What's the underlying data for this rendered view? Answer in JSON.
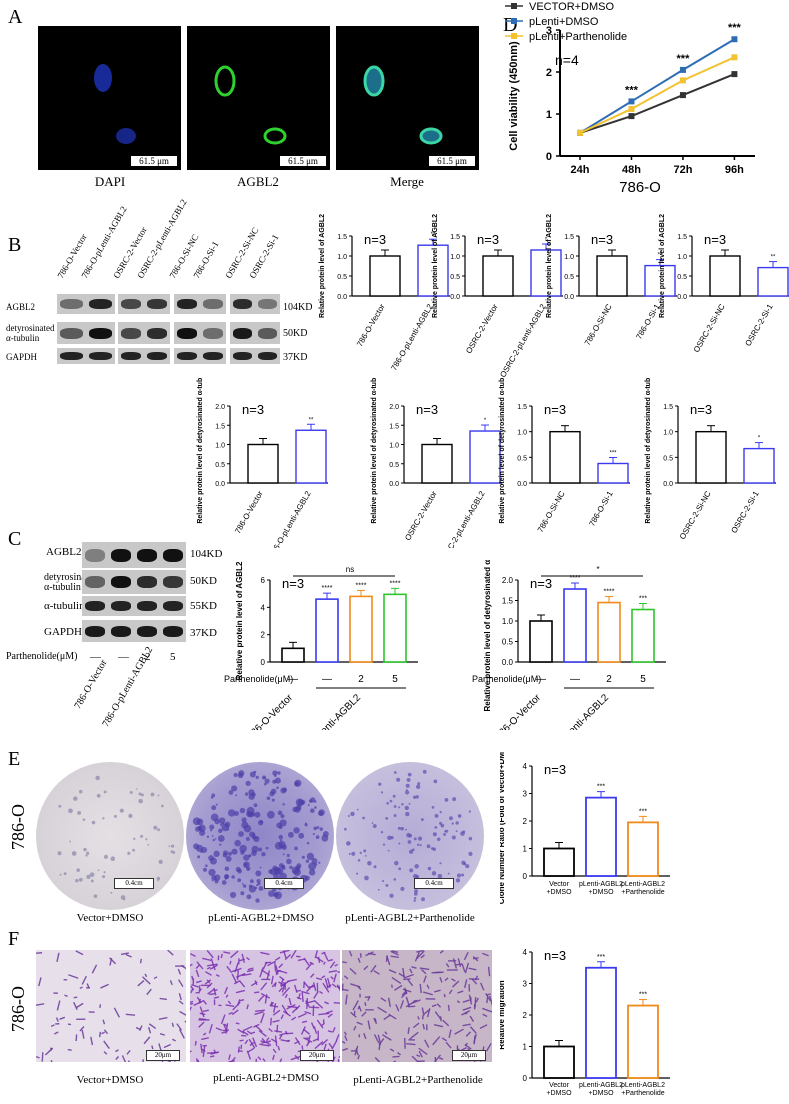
{
  "panels": {
    "A": "A",
    "B": "B",
    "C": "C",
    "D": "D",
    "E": "E",
    "F": "F"
  },
  "panelA": {
    "captions": [
      "DAPI",
      "AGBL2",
      "Merge"
    ],
    "scale": "61.5 μm"
  },
  "panelD": {
    "n": "n=4",
    "title": "786-O",
    "ylabel": "Cell viability (450nm)",
    "stars": [
      "***",
      "***",
      "***"
    ]
  },
  "panelB": {
    "lanes": [
      "786-O-Vector",
      "786-O-pLenti-AGBL2",
      "OSRC-2-Vector",
      "OSRC-2-pLenti-AGBL2",
      "786-O-Si-NC",
      "786-O-Si-1",
      "OSRC-2-Si-NC",
      "OSRC-2-Si-1"
    ],
    "rows": [
      "AGBL2",
      "detyrosinated α-tubulin",
      "GAPDH"
    ],
    "kd": [
      "104KD",
      "50KD",
      "37KD"
    ],
    "n": "n=3",
    "ylabel_agbl2": "Relative protein level of AGBL2",
    "ylabel_tub": "Relative protein level of detyrosinated α-tubulin"
  },
  "panelC": {
    "rows": [
      "AGBL2",
      "detyrosinated α-tubulin",
      "α-tubulin",
      "GAPDH"
    ],
    "kd": [
      "104KD",
      "50KD",
      "55KD",
      "37KD"
    ],
    "treat_label": "Parthenolide(μM)",
    "treat_vals": [
      "—",
      "—",
      "2",
      "5"
    ],
    "lanes": [
      "786-O-Vector",
      "786-O-pLenti-AGBL2"
    ],
    "n": "n=3",
    "ns": "ns",
    "star": "*",
    "ylabel1": "Relative protein level of AGBL2",
    "ylabel2": "Relative protein level of detyrosinated α-tubulin"
  },
  "panelE": {
    "side": "786-O",
    "captions": [
      "Vector+DMSO",
      "pLenti-AGBL2+DMSO",
      "pLenti-AGBL2+Parthenolide"
    ],
    "scale": "0.4cm",
    "n": "n=3",
    "ylabel": "Clone Number Ratio (Fold of Vector+DMSO)",
    "xlabels": [
      "Vector +DMSO",
      "pLenti-AGBL2 +DMSO",
      "pLenti-AGBL2 +Parthenolide"
    ],
    "stars": [
      "***",
      "***"
    ]
  },
  "panelF": {
    "side": "786-O",
    "captions": [
      "Vector+DMSO",
      "pLenti-AGBL2+DMSO",
      "pLenti-AGBL2+Parthenolide"
    ],
    "scale": "20μm",
    "n": "n=3",
    "ylabel": "Relative migration",
    "xlabels": [
      "Vector +DMSO",
      "pLenti-AGBL2 +DMSO",
      "pLenti-AGBL2 +Parthenolide"
    ],
    "stars": [
      "***",
      "***"
    ]
  },
  "chart_data": [
    {
      "id": "D",
      "type": "line",
      "title": "786-O",
      "ylabel": "Cell viability (450nm)",
      "categories": [
        "24h",
        "48h",
        "72h",
        "96h"
      ],
      "ylim": [
        0,
        3
      ],
      "yticks": [
        0,
        1,
        2,
        3
      ],
      "legend": "top",
      "series": [
        {
          "name": "VECTOR+DMSO",
          "color": "#333333",
          "values": [
            0.55,
            0.95,
            1.45,
            1.95
          ]
        },
        {
          "name": "pLenti+DMSO",
          "color": "#2e6db4",
          "values": [
            0.55,
            1.3,
            2.05,
            2.78
          ]
        },
        {
          "name": "pLenti+Parthenolide",
          "color": "#f2c230",
          "values": [
            0.55,
            1.12,
            1.8,
            2.35
          ]
        }
      ]
    },
    {
      "id": "B1",
      "type": "bar",
      "categories": [
        "786-O-Vector",
        "786-O-pLenti-AGBL2"
      ],
      "values": [
        1.0,
        1.27
      ],
      "ylim": [
        0,
        1.5
      ],
      "yticks": [
        0,
        0.5,
        1.0,
        1.5
      ],
      "stars": [
        "",
        "**"
      ]
    },
    {
      "id": "B2",
      "type": "bar",
      "categories": [
        "OSRC-2-Vector",
        "OSRC-2-pLenti-AGBL2"
      ],
      "values": [
        1.0,
        1.15
      ],
      "ylim": [
        0,
        1.5
      ],
      "yticks": [
        0,
        0.5,
        1.0,
        1.5
      ],
      "stars": [
        "",
        "*"
      ]
    },
    {
      "id": "B3",
      "type": "bar",
      "categories": [
        "786-O-Si-NC",
        "786-O-Si-1"
      ],
      "values": [
        1.0,
        0.76
      ],
      "ylim": [
        0,
        1.5
      ],
      "yticks": [
        0,
        0.5,
        1.0,
        1.5
      ],
      "stars": [
        "",
        "**"
      ]
    },
    {
      "id": "B4",
      "type": "bar",
      "categories": [
        "OSRC-2-Si-NC",
        "OSRC-2-Si-1"
      ],
      "values": [
        1.0,
        0.71
      ],
      "ylim": [
        0,
        1.5
      ],
      "yticks": [
        0,
        0.5,
        1.0,
        1.5
      ],
      "stars": [
        "",
        "**"
      ]
    },
    {
      "id": "B5",
      "type": "bar",
      "categories": [
        "786-O-Vector",
        "786-O-pLenti-AGBL2"
      ],
      "values": [
        1.0,
        1.37
      ],
      "ylim": [
        0,
        2.0
      ],
      "yticks": [
        0,
        0.5,
        1.0,
        1.5,
        2.0
      ],
      "stars": [
        "",
        "**"
      ]
    },
    {
      "id": "B6",
      "type": "bar",
      "categories": [
        "OSRC-2-Vector",
        "OSRC-2-pLenti-AGBL2"
      ],
      "values": [
        1.0,
        1.35
      ],
      "ylim": [
        0,
        2.0
      ],
      "yticks": [
        0,
        0.5,
        1.0,
        1.5,
        2.0
      ],
      "stars": [
        "",
        "*"
      ]
    },
    {
      "id": "B7",
      "type": "bar",
      "categories": [
        "786-O-Si-NC",
        "786-O-Si-1"
      ],
      "values": [
        1.0,
        0.38
      ],
      "ylim": [
        0,
        1.5
      ],
      "yticks": [
        0,
        0.5,
        1.0,
        1.5
      ],
      "stars": [
        "",
        "***"
      ]
    },
    {
      "id": "B8",
      "type": "bar",
      "categories": [
        "OSRC-2-Si-NC",
        "OSRC-2-Si-1"
      ],
      "values": [
        1.0,
        0.67
      ],
      "ylim": [
        0,
        1.5
      ],
      "yticks": [
        0,
        0.5,
        1.0,
        1.5
      ],
      "stars": [
        "",
        "*"
      ]
    },
    {
      "id": "C1",
      "type": "bar",
      "ylabel": "Relative protein level of AGBL2",
      "categories": [
        "—",
        "—",
        "2",
        "5"
      ],
      "values": [
        1.0,
        4.6,
        4.8,
        4.95
      ],
      "ylim": [
        0,
        6
      ],
      "yticks": [
        0,
        2,
        4,
        6
      ],
      "colors": [
        "#000000",
        "#3a3af0",
        "#f08a1a",
        "#2ec42e"
      ],
      "stars": [
        "",
        "****",
        "****",
        "****"
      ]
    },
    {
      "id": "C2",
      "type": "bar",
      "ylabel": "Relative protein level of detyrosinated α-tubulin",
      "categories": [
        "—",
        "—",
        "2",
        "5"
      ],
      "values": [
        1.0,
        1.78,
        1.45,
        1.28
      ],
      "ylim": [
        0,
        2.0
      ],
      "yticks": [
        0,
        0.5,
        1.0,
        1.5,
        2.0
      ],
      "colors": [
        "#000000",
        "#3a3af0",
        "#f08a1a",
        "#2ec42e"
      ],
      "stars": [
        "",
        "****",
        "****",
        "***"
      ]
    },
    {
      "id": "E",
      "type": "bar",
      "ylabel": "Clone Number Ratio (Fold of Vector+DMSO)",
      "categories": [
        "Vector +DMSO",
        "pLenti-AGBL2 +DMSO",
        "pLenti-AGBL2 +Parthenolide"
      ],
      "values": [
        1.0,
        2.85,
        1.95
      ],
      "ylim": [
        0,
        4
      ],
      "yticks": [
        0,
        1,
        2,
        3,
        4
      ],
      "colors": [
        "#000000",
        "#3a3af0",
        "#f08a1a"
      ],
      "stars": [
        "",
        "***",
        "***"
      ]
    },
    {
      "id": "F",
      "type": "bar",
      "ylabel": "Relative migration",
      "categories": [
        "Vector +DMSO",
        "pLenti-AGBL2 +DMSO",
        "pLenti-AGBL2 +Parthenolide"
      ],
      "values": [
        1.0,
        3.5,
        2.3
      ],
      "ylim": [
        0,
        4
      ],
      "yticks": [
        0,
        1,
        2,
        3,
        4
      ],
      "colors": [
        "#000000",
        "#3a3af0",
        "#f08a1a"
      ],
      "stars": [
        "",
        "***",
        "***"
      ]
    }
  ]
}
